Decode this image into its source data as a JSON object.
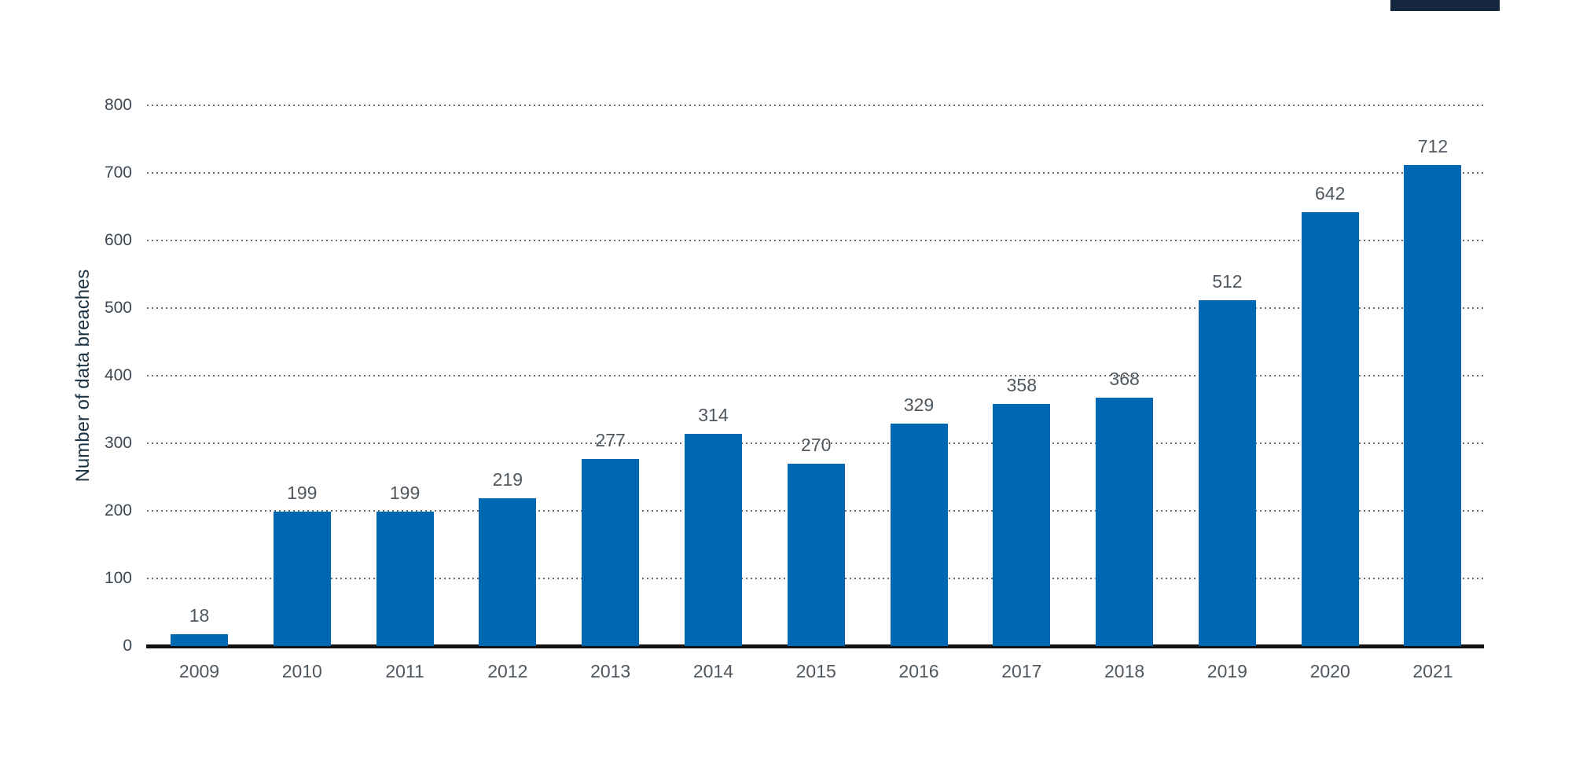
{
  "chart_data": {
    "type": "bar",
    "title": "",
    "categories": [
      "2009",
      "2010",
      "2011",
      "2012",
      "2013",
      "2014",
      "2015",
      "2016",
      "2017",
      "2018",
      "2019",
      "2020",
      "2021"
    ],
    "values": [
      18,
      199,
      199,
      219,
      277,
      314,
      270,
      329,
      358,
      368,
      512,
      642,
      712
    ],
    "xlabel": "",
    "ylabel": "Number of data breaches",
    "ylim": [
      0,
      800
    ],
    "yticks": [
      0,
      100,
      200,
      300,
      400,
      500,
      600,
      700,
      800
    ],
    "grid": "horizontal-dotted",
    "legend": "none",
    "value_labels_shown": true
  },
  "colors": {
    "background": "#ffffff",
    "bar": "#0067b2",
    "axis_line": "#121212",
    "gridline_dot": "#6a6a6a",
    "y_tick_label": "#3d4852",
    "x_tick_label": "#4f575f",
    "value_label": "#50585f",
    "axis_title": "#1d3445",
    "cropped_element": "#14273e"
  },
  "artifacts": {
    "cropped_top_right_element": "partially visible dark rectangle cut off at top edge"
  }
}
